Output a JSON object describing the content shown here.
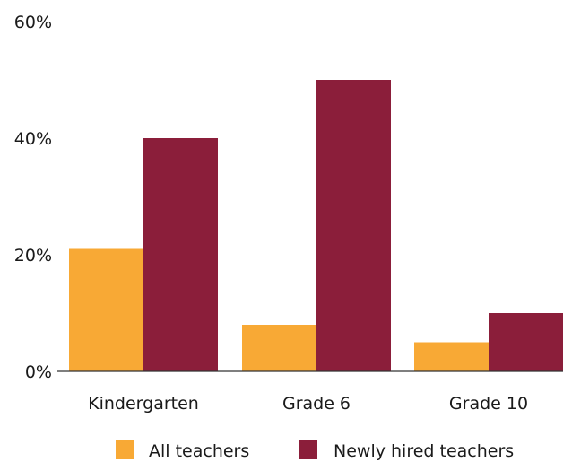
{
  "chart_data": {
    "type": "bar",
    "categories": [
      "Kindergarten",
      "Grade 6",
      "Grade 10"
    ],
    "series": [
      {
        "name": "All teachers",
        "values": [
          21,
          8,
          5
        ],
        "color": "#F8A935"
      },
      {
        "name": "Newly hired teachers",
        "values": [
          40,
          50,
          10
        ],
        "color": "#8B1E3A"
      }
    ],
    "ylim": [
      0,
      60
    ],
    "yticks": [
      0,
      20,
      40,
      60
    ],
    "ytick_labels": [
      "0%",
      "20%",
      "40%",
      "60%"
    ],
    "title": "",
    "xlabel": "",
    "ylabel": "",
    "grid": false,
    "legend_position": "bottom"
  }
}
